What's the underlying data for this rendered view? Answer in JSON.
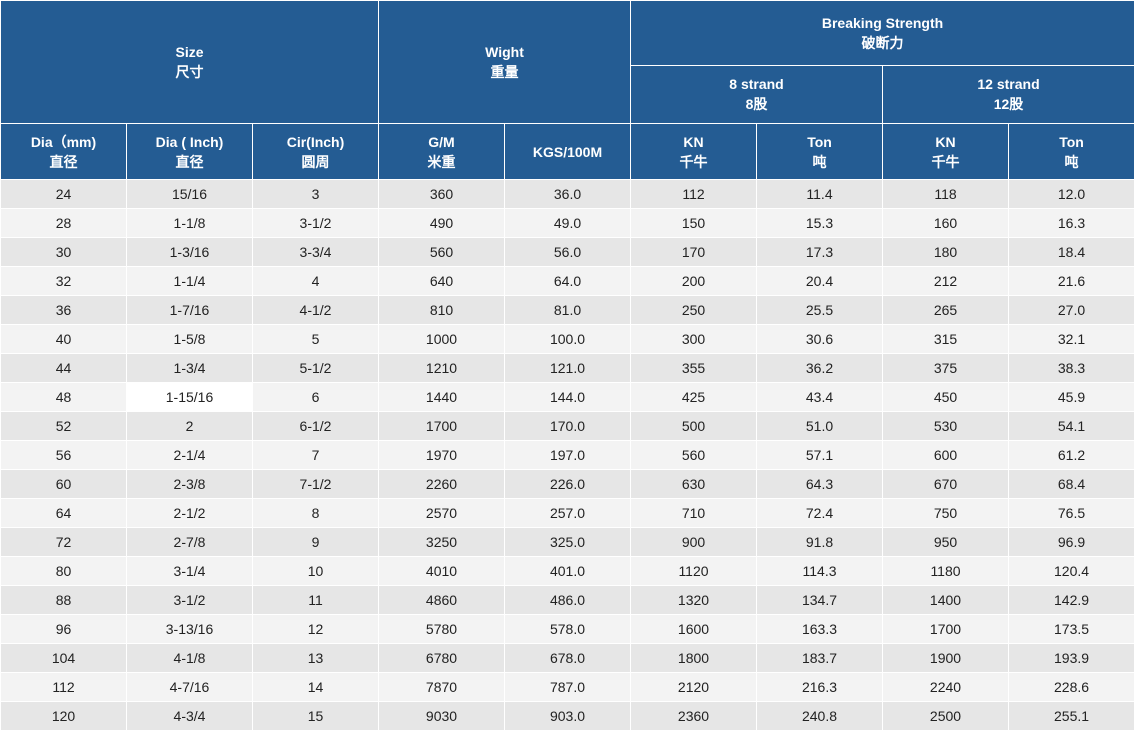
{
  "header": {
    "size": {
      "en": "Size",
      "zh": "尺寸"
    },
    "weight": {
      "en": "Wight",
      "zh": "重量"
    },
    "breaking": {
      "en": "Breaking Strength",
      "zh": "破断力"
    },
    "strand8": {
      "en": "8 strand",
      "zh": "8股"
    },
    "strand12": {
      "en": "12 strand",
      "zh": "12股"
    }
  },
  "columns": [
    {
      "en": "Dia（mm)",
      "zh": "直径"
    },
    {
      "en": "Dia ( Inch)",
      "zh": "直径"
    },
    {
      "en": "Cir(Inch)",
      "zh": "圆周"
    },
    {
      "en": "G/M",
      "zh": "米重"
    },
    {
      "en": "KGS/100M",
      "zh": ""
    },
    {
      "en": "KN",
      "zh": "千牛"
    },
    {
      "en": "Ton",
      "zh": "吨"
    },
    {
      "en": "KN",
      "zh": "千牛"
    },
    {
      "en": "Ton",
      "zh": "吨"
    }
  ],
  "rows": [
    [
      "24",
      "15/16",
      "3",
      "360",
      "36.0",
      "112",
      "11.4",
      "118",
      "12.0"
    ],
    [
      "28",
      "1-1/8",
      "3-1/2",
      "490",
      "49.0",
      "150",
      "15.3",
      "160",
      "16.3"
    ],
    [
      "30",
      "1-3/16",
      "3-3/4",
      "560",
      "56.0",
      "170",
      "17.3",
      "180",
      "18.4"
    ],
    [
      "32",
      "1-1/4",
      "4",
      "640",
      "64.0",
      "200",
      "20.4",
      "212",
      "21.6"
    ],
    [
      "36",
      "1-7/16",
      "4-1/2",
      "810",
      "81.0",
      "250",
      "25.5",
      "265",
      "27.0"
    ],
    [
      "40",
      "1-5/8",
      "5",
      "1000",
      "100.0",
      "300",
      "30.6",
      "315",
      "32.1"
    ],
    [
      "44",
      "1-3/4",
      "5-1/2",
      "1210",
      "121.0",
      "355",
      "36.2",
      "375",
      "38.3"
    ],
    [
      "48",
      "1-15/16",
      "6",
      "1440",
      "144.0",
      "425",
      "43.4",
      "450",
      "45.9"
    ],
    [
      "52",
      "2",
      "6-1/2",
      "1700",
      "170.0",
      "500",
      "51.0",
      "530",
      "54.1"
    ],
    [
      "56",
      "2-1/4",
      "7",
      "1970",
      "197.0",
      "560",
      "57.1",
      "600",
      "61.2"
    ],
    [
      "60",
      "2-3/8",
      "7-1/2",
      "2260",
      "226.0",
      "630",
      "64.3",
      "670",
      "68.4"
    ],
    [
      "64",
      "2-1/2",
      "8",
      "2570",
      "257.0",
      "710",
      "72.4",
      "750",
      "76.5"
    ],
    [
      "72",
      "2-7/8",
      "9",
      "3250",
      "325.0",
      "900",
      "91.8",
      "950",
      "96.9"
    ],
    [
      "80",
      "3-1/4",
      "10",
      "4010",
      "401.0",
      "1120",
      "114.3",
      "1180",
      "120.4"
    ],
    [
      "88",
      "3-1/2",
      "11",
      "4860",
      "486.0",
      "1320",
      "134.7",
      "1400",
      "142.9"
    ],
    [
      "96",
      "3-13/16",
      "12",
      "5780",
      "578.0",
      "1600",
      "163.3",
      "1700",
      "173.5"
    ],
    [
      "104",
      "4-1/8",
      "13",
      "6780",
      "678.0",
      "1800",
      "183.7",
      "1900",
      "193.9"
    ],
    [
      "112",
      "4-7/16",
      "14",
      "7870",
      "787.0",
      "2120",
      "216.3",
      "2240",
      "228.6"
    ],
    [
      "120",
      "4-3/4",
      "15",
      "9030",
      "903.0",
      "2360",
      "240.8",
      "2500",
      "255.1"
    ]
  ]
}
